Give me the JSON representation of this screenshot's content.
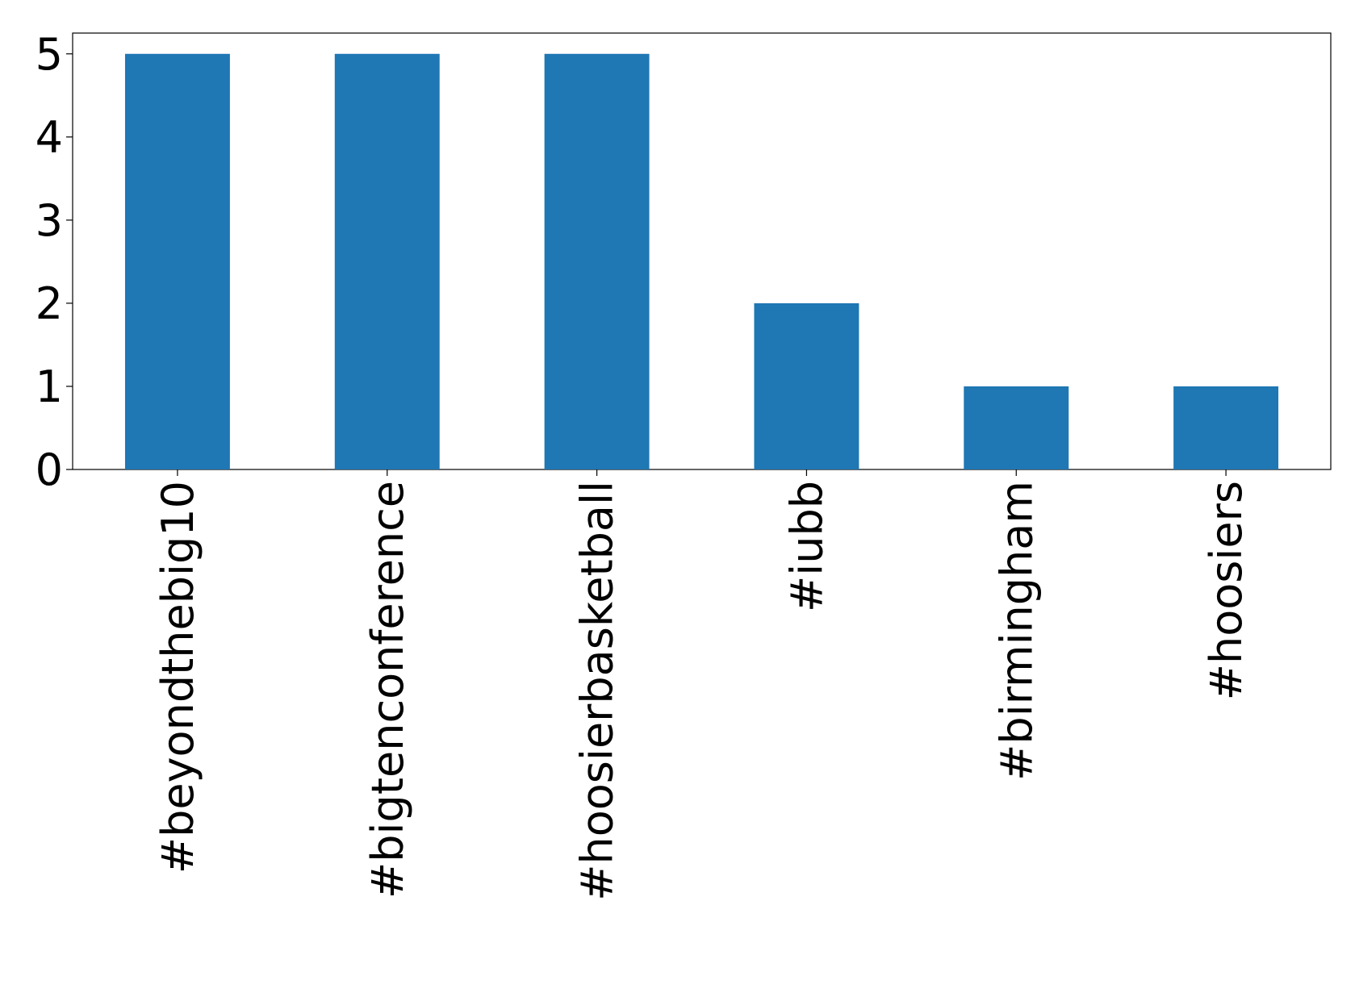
{
  "chart_data": {
    "type": "bar",
    "categories": [
      "#beyondthebig10",
      "#bigtenconference",
      "#hoosierbasketball",
      "#iubb",
      "#birmingham",
      "#hoosiers"
    ],
    "values": [
      5,
      5,
      5,
      2,
      1,
      1
    ],
    "color": "#1f77b4",
    "ylim": [
      0,
      5.25
    ],
    "yticks": [
      0,
      1,
      2,
      3,
      4,
      5
    ],
    "grid": false
  }
}
